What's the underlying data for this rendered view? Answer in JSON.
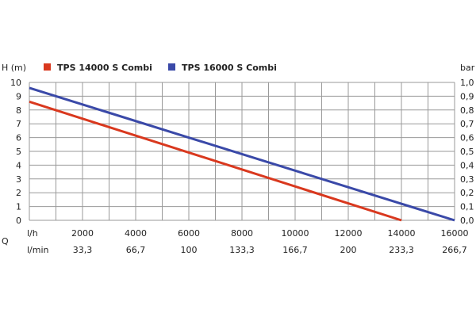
{
  "chart_data": {
    "type": "line",
    "title": "",
    "y_left_label": "H (m)",
    "y_right_label": "bar",
    "x_row_label_lh": "l/h",
    "x_row_label_q": "Q",
    "x_row_label_lmin": "l/min",
    "x_lh_ticks": [
      "2000",
      "4000",
      "6000",
      "8000",
      "10000",
      "12000",
      "14000",
      "16000"
    ],
    "x_lmin_ticks": [
      "33,3",
      "66,7",
      "100",
      "133,3",
      "166,7",
      "200",
      "233,3",
      "266,7"
    ],
    "y_left_ticks": [
      "0",
      "1",
      "2",
      "3",
      "4",
      "5",
      "6",
      "7",
      "8",
      "9",
      "10"
    ],
    "y_right_ticks": [
      "0,0",
      "0,1",
      "0,2",
      "0,3",
      "0,4",
      "0,5",
      "0,6",
      "0,7",
      "0,8",
      "0,9",
      "1,0"
    ],
    "xlim": [
      0,
      16000
    ],
    "ylim": [
      0,
      10
    ],
    "grid": true,
    "legend_position": "top-left",
    "series": [
      {
        "name": "TPS 14000 S Combi",
        "color": "#d9381e",
        "x": [
          0,
          14000
        ],
        "y": [
          8.6,
          0
        ]
      },
      {
        "name": "TPS 16000 S Combi",
        "color": "#3a49a8",
        "x": [
          0,
          16000
        ],
        "y": [
          9.6,
          0
        ]
      }
    ]
  }
}
